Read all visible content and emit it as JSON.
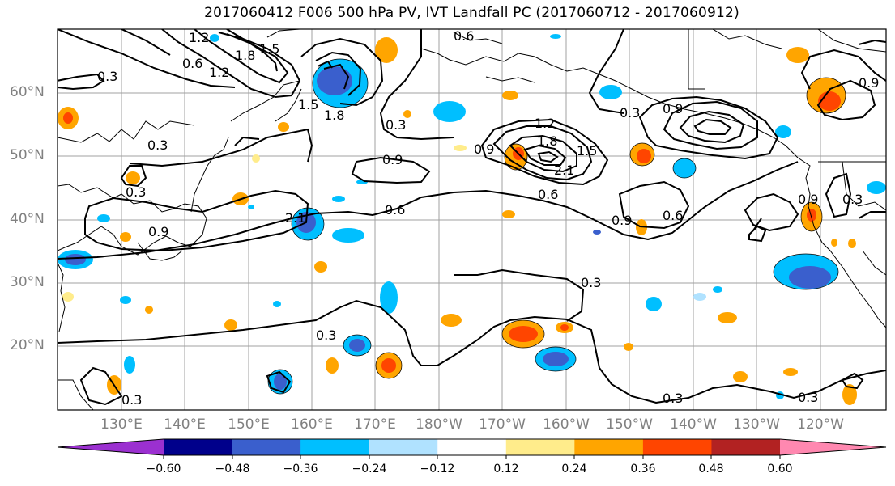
{
  "title": "2017060412 F006 500 hPa PV, IVT Landfall PC (2017060712 - 2017060912)",
  "lat_labels": [
    "60°N",
    "50°N",
    "40°N",
    "30°N",
    "20°N"
  ],
  "lon_labels": [
    "130°E",
    "140°E",
    "150°E",
    "160°E",
    "170°E",
    "180°W",
    "170°W",
    "160°W",
    "150°W",
    "140°W",
    "130°W",
    "120°W"
  ],
  "contour_labels": [
    "0.3",
    "0.6",
    "0.9",
    "1.2",
    "1.5",
    "1.8",
    "2.1"
  ],
  "colorbar": {
    "tick_labels": [
      "−0.60",
      "−0.48",
      "−0.36",
      "−0.24",
      "−0.12",
      "0.12",
      "0.24",
      "0.36",
      "0.48",
      "0.60"
    ],
    "colors": [
      "#9b30d0",
      "#00008b",
      "#3a5fcd",
      "#00bfff",
      "#b0e2ff",
      "#ffffff",
      "#ffec8b",
      "#ffa500",
      "#ff4500",
      "#b22222",
      "#ff88b0"
    ]
  },
  "colors": {
    "contour": "#000000",
    "coast": "#000000",
    "grid": "#a0a0a0",
    "axis_label": "#808080"
  }
}
